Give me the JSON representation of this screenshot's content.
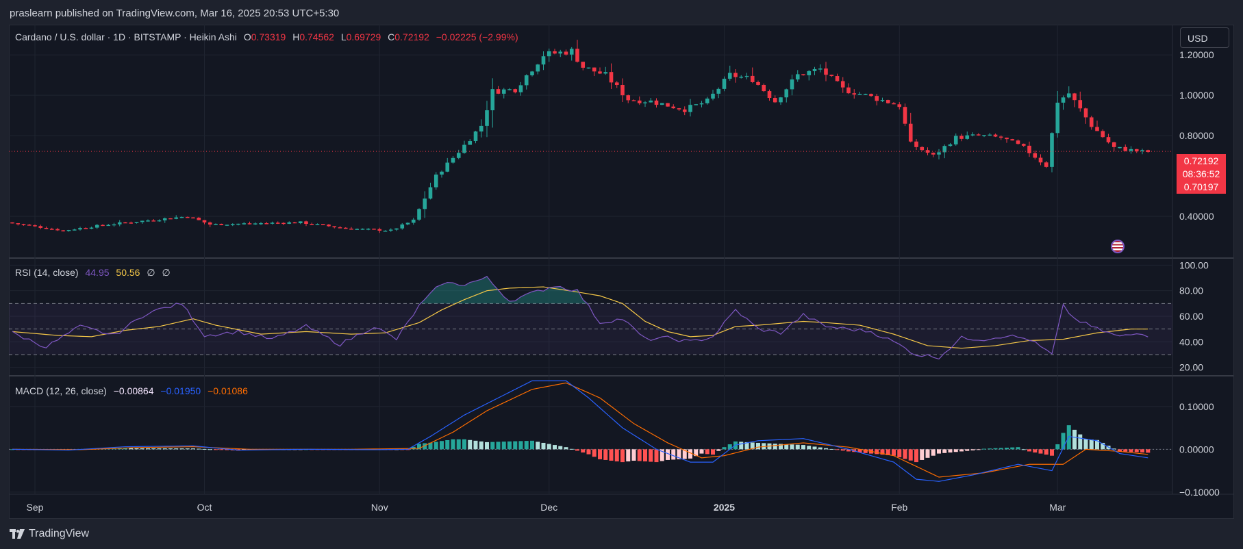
{
  "header": {
    "publisher": "praslearn published on TradingView.com, Mar 16, 2025 20:53 UTC+5:30"
  },
  "footer": {
    "brand": "TradingView",
    "logo_icon": "tradingview-logo-icon"
  },
  "colors": {
    "up": "#26a69a",
    "down": "#f23645",
    "rsi": "#7e57c2",
    "rsi_ma": "#f7c948",
    "macd": "#2962ff",
    "signal": "#ff6d00",
    "hist_up_strong": "#26a69a",
    "hist_up_weak": "#b2dfdb",
    "hist_down_strong": "#ff5252",
    "hist_down_weak": "#ffcdd2"
  },
  "legend": {
    "symbol": "Cardano / U.S. dollar · 1D · BITSTAMP · Heikin Ashi",
    "o_label": "O",
    "o": "0.73319",
    "h_label": "H",
    "h": "0.74562",
    "l_label": "L",
    "l": "0.69729",
    "c_label": "C",
    "c": "0.72192",
    "change": "−0.02225 (−2.99%)"
  },
  "rsi_legend": {
    "name": "RSI (14, close)",
    "value": "44.95",
    "ma": "50.56",
    "icon1": "∅",
    "icon2": "∅"
  },
  "macd_legend": {
    "name": "MACD (12, 26, close)",
    "hist": "−0.00864",
    "macd": "−0.01950",
    "signal": "−0.01086"
  },
  "currency_button": "USD",
  "price_badges": {
    "last": "0.72192",
    "countdown": "08:36:52",
    "prev": "0.70197"
  },
  "chart_data": [
    {
      "type": "candlestick",
      "title": "Cardano / U.S. dollar · 1D · BITSTAMP · Heikin Ashi",
      "ylim": [
        0.2,
        1.35
      ],
      "y_ticks": [
        "1.20000",
        "1.00000",
        "0.80000",
        "0.40000"
      ],
      "y_tick_values": [
        1.2,
        1.0,
        0.8,
        0.4
      ],
      "x_ticks": [
        "Sep",
        "Oct",
        "Nov",
        "Dec",
        "2025",
        "Feb",
        "Mar"
      ],
      "x_tick_days": [
        4,
        34,
        65,
        95,
        126,
        157,
        185
      ],
      "last_price": 0.72192,
      "keyframes": [
        [
          0,
          0.37
        ],
        [
          10,
          0.33
        ],
        [
          18,
          0.36
        ],
        [
          32,
          0.4
        ],
        [
          36,
          0.36
        ],
        [
          52,
          0.37
        ],
        [
          60,
          0.34
        ],
        [
          68,
          0.33
        ],
        [
          72,
          0.38
        ],
        [
          76,
          0.6
        ],
        [
          80,
          0.72
        ],
        [
          84,
          0.85
        ],
        [
          86,
          1.02
        ],
        [
          90,
          1.03
        ],
        [
          95,
          1.2
        ],
        [
          100,
          1.22
        ],
        [
          102,
          1.14
        ],
        [
          106,
          1.1
        ],
        [
          110,
          0.98
        ],
        [
          114,
          0.97
        ],
        [
          120,
          0.93
        ],
        [
          124,
          0.97
        ],
        [
          128,
          1.1
        ],
        [
          132,
          1.08
        ],
        [
          136,
          0.97
        ],
        [
          140,
          1.1
        ],
        [
          144,
          1.13
        ],
        [
          148,
          1.03
        ],
        [
          152,
          1.0
        ],
        [
          158,
          0.95
        ],
        [
          160,
          0.76
        ],
        [
          164,
          0.7
        ],
        [
          168,
          0.79
        ],
        [
          172,
          0.8
        ],
        [
          176,
          0.79
        ],
        [
          180,
          0.74
        ],
        [
          184,
          0.65
        ],
        [
          186,
          0.97
        ],
        [
          188,
          1.01
        ],
        [
          192,
          0.85
        ],
        [
          196,
          0.74
        ],
        [
          201,
          0.72
        ]
      ]
    },
    {
      "type": "line",
      "name": "RSI (14, close)",
      "ylim": [
        15,
        105
      ],
      "y_ticks": [
        "100.00",
        "80.00",
        "60.00",
        "40.00",
        "20.00"
      ],
      "y_tick_values": [
        100,
        80,
        60,
        40,
        20
      ],
      "bands": [
        30,
        50,
        70
      ],
      "rsi_keyframes": [
        [
          0,
          47
        ],
        [
          6,
          36
        ],
        [
          12,
          52
        ],
        [
          18,
          45
        ],
        [
          24,
          63
        ],
        [
          30,
          70
        ],
        [
          34,
          45
        ],
        [
          40,
          48
        ],
        [
          46,
          42
        ],
        [
          52,
          52
        ],
        [
          58,
          38
        ],
        [
          64,
          52
        ],
        [
          68,
          42
        ],
        [
          72,
          68
        ],
        [
          76,
          86
        ],
        [
          80,
          85
        ],
        [
          84,
          90
        ],
        [
          88,
          72
        ],
        [
          92,
          78
        ],
        [
          96,
          84
        ],
        [
          100,
          80
        ],
        [
          104,
          55
        ],
        [
          108,
          58
        ],
        [
          112,
          42
        ],
        [
          116,
          43
        ],
        [
          120,
          40
        ],
        [
          124,
          44
        ],
        [
          128,
          65
        ],
        [
          132,
          50
        ],
        [
          136,
          47
        ],
        [
          140,
          61
        ],
        [
          144,
          52
        ],
        [
          148,
          50
        ],
        [
          152,
          48
        ],
        [
          156,
          40
        ],
        [
          160,
          30
        ],
        [
          164,
          28
        ],
        [
          168,
          43
        ],
        [
          172,
          42
        ],
        [
          176,
          45
        ],
        [
          180,
          42
        ],
        [
          184,
          30
        ],
        [
          186,
          68
        ],
        [
          188,
          58
        ],
        [
          192,
          50
        ],
        [
          196,
          44
        ],
        [
          200,
          47
        ],
        [
          201,
          45
        ]
      ],
      "ma_keyframes": [
        [
          0,
          48
        ],
        [
          8,
          45
        ],
        [
          14,
          44
        ],
        [
          20,
          49
        ],
        [
          26,
          52
        ],
        [
          32,
          58
        ],
        [
          36,
          53
        ],
        [
          44,
          46
        ],
        [
          52,
          48
        ],
        [
          60,
          46
        ],
        [
          66,
          47
        ],
        [
          72,
          55
        ],
        [
          76,
          65
        ],
        [
          80,
          73
        ],
        [
          84,
          80
        ],
        [
          88,
          82
        ],
        [
          94,
          83
        ],
        [
          100,
          79
        ],
        [
          104,
          76
        ],
        [
          108,
          70
        ],
        [
          112,
          56
        ],
        [
          116,
          48
        ],
        [
          120,
          44
        ],
        [
          124,
          45
        ],
        [
          128,
          52
        ],
        [
          132,
          53
        ],
        [
          140,
          56
        ],
        [
          144,
          55
        ],
        [
          150,
          53
        ],
        [
          156,
          46
        ],
        [
          162,
          37
        ],
        [
          168,
          35
        ],
        [
          174,
          37
        ],
        [
          180,
          41
        ],
        [
          186,
          42
        ],
        [
          192,
          47
        ],
        [
          198,
          50
        ],
        [
          201,
          50
        ]
      ]
    },
    {
      "type": "bar",
      "name": "MACD (12, 26, close)",
      "ylim": [
        -0.105,
        0.17
      ],
      "y_ticks": [
        "0.10000",
        "0.00000",
        "−0.10000"
      ],
      "y_tick_values": [
        0.1,
        0.0,
        -0.1
      ],
      "macd_keyframes": [
        [
          0,
          0.0
        ],
        [
          10,
          -0.002
        ],
        [
          20,
          0.006
        ],
        [
          32,
          0.008
        ],
        [
          40,
          -0.002
        ],
        [
          52,
          0.0
        ],
        [
          64,
          -0.001
        ],
        [
          70,
          0.0
        ],
        [
          74,
          0.03
        ],
        [
          80,
          0.08
        ],
        [
          86,
          0.12
        ],
        [
          92,
          0.16
        ],
        [
          98,
          0.16
        ],
        [
          102,
          0.12
        ],
        [
          108,
          0.05
        ],
        [
          114,
          0.0
        ],
        [
          120,
          -0.03
        ],
        [
          124,
          -0.03
        ],
        [
          128,
          0.01
        ],
        [
          132,
          0.02
        ],
        [
          140,
          0.025
        ],
        [
          148,
          0.0
        ],
        [
          156,
          -0.03
        ],
        [
          160,
          -0.07
        ],
        [
          164,
          -0.075
        ],
        [
          170,
          -0.06
        ],
        [
          178,
          -0.035
        ],
        [
          184,
          -0.05
        ],
        [
          187,
          0.03
        ],
        [
          192,
          0.02
        ],
        [
          196,
          -0.01
        ],
        [
          201,
          -0.02
        ]
      ],
      "signal_keyframes": [
        [
          0,
          0.0
        ],
        [
          12,
          -0.001
        ],
        [
          22,
          0.004
        ],
        [
          32,
          0.006
        ],
        [
          42,
          0.0
        ],
        [
          60,
          0.0
        ],
        [
          72,
          0.002
        ],
        [
          78,
          0.04
        ],
        [
          84,
          0.09
        ],
        [
          92,
          0.14
        ],
        [
          98,
          0.155
        ],
        [
          104,
          0.12
        ],
        [
          110,
          0.06
        ],
        [
          116,
          0.015
        ],
        [
          122,
          -0.02
        ],
        [
          126,
          -0.015
        ],
        [
          132,
          0.005
        ],
        [
          140,
          0.015
        ],
        [
          148,
          0.005
        ],
        [
          156,
          -0.015
        ],
        [
          164,
          -0.065
        ],
        [
          172,
          -0.055
        ],
        [
          180,
          -0.035
        ],
        [
          186,
          -0.035
        ],
        [
          190,
          0.0
        ],
        [
          196,
          -0.005
        ],
        [
          201,
          -0.012
        ]
      ]
    }
  ]
}
